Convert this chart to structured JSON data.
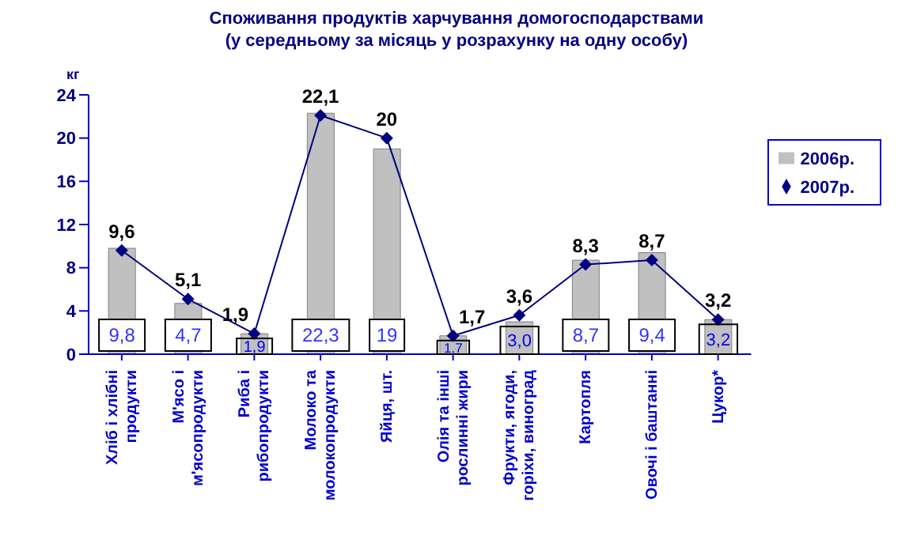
{
  "chart_data": {
    "type": "bar",
    "title": "Споживання продуктів харчування  домогосподарствами",
    "subtitle": "(у середньому за місяць у розрахунку на одну особу)",
    "ylabel": "кг",
    "categories": [
      "Хліб і хлібні\nпродукти",
      "М'ясо і\nм'ясопродукти",
      "Риба і\nрибопродукти",
      "Молоко та\nмолокопродукти",
      "Яйця, шт.",
      "Олія та інші\nрослинні жири",
      "Фрукти, ягоди,\nгоріхи, виноград",
      "Картопля",
      "Овочі і баштанні",
      "Цукор*"
    ],
    "series": [
      {
        "name": "2006р.",
        "type": "bar",
        "color": "#c0c0c0",
        "values": [
          9.8,
          4.7,
          1.9,
          22.3,
          19,
          1.7,
          3.0,
          8.7,
          9.4,
          3.2
        ],
        "value_labels": [
          "9,8",
          "4,7",
          "1,9",
          "22,3",
          "19",
          "1,7",
          "3,0",
          "8,7",
          "9,4",
          "3,2"
        ]
      },
      {
        "name": "2007р.",
        "type": "line",
        "color": "#000080",
        "marker": "diamond",
        "values": [
          9.6,
          5.1,
          1.9,
          22.1,
          20,
          1.7,
          3.6,
          8.3,
          8.7,
          3.2
        ],
        "value_labels": [
          "9,6",
          "5,1",
          "1,9",
          "22,1",
          "20",
          "1,7",
          "3,6",
          "8,3",
          "8,7",
          "3,2"
        ]
      }
    ],
    "ylim": [
      0,
      24
    ],
    "yticks": [
      0,
      4,
      8,
      12,
      16,
      20,
      24
    ],
    "grid": false,
    "legend": "right"
  }
}
